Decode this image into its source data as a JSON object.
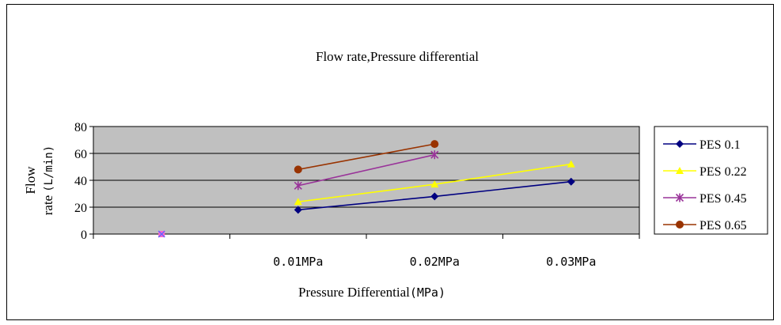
{
  "chart_data": {
    "type": "line",
    "title": "Flow rate,Pressure differential",
    "xlabel": "Pressure Differential",
    "xlabel_unit": "(MPa)",
    "ylabel_line1": "Flow",
    "ylabel_line2": "rate",
    "ylabel_unit": "(L/min)",
    "categories": [
      "",
      "0.01MPa",
      "0.02MPa",
      "0.03MPa"
    ],
    "ylim": [
      0,
      80
    ],
    "yticks": [
      "0",
      "20",
      "40",
      "60",
      "80"
    ],
    "grid": true,
    "legend_position": "right",
    "plot_background": "#c0c0c0",
    "series": [
      {
        "name": "PES 0.1",
        "values": [
          0,
          18,
          28,
          39
        ],
        "color": "#000080",
        "marker": "diamond"
      },
      {
        "name": "PES 0.22",
        "values": [
          0,
          24,
          37,
          52
        ],
        "color": "#ffff00",
        "marker": "triangle"
      },
      {
        "name": "PES 0.45",
        "values": [
          0,
          36,
          59,
          null
        ],
        "color": "#993399",
        "marker": "star"
      },
      {
        "name": "PES 0.65",
        "values": [
          0,
          48,
          67,
          null
        ],
        "color": "#993300",
        "marker": "circle"
      }
    ]
  }
}
